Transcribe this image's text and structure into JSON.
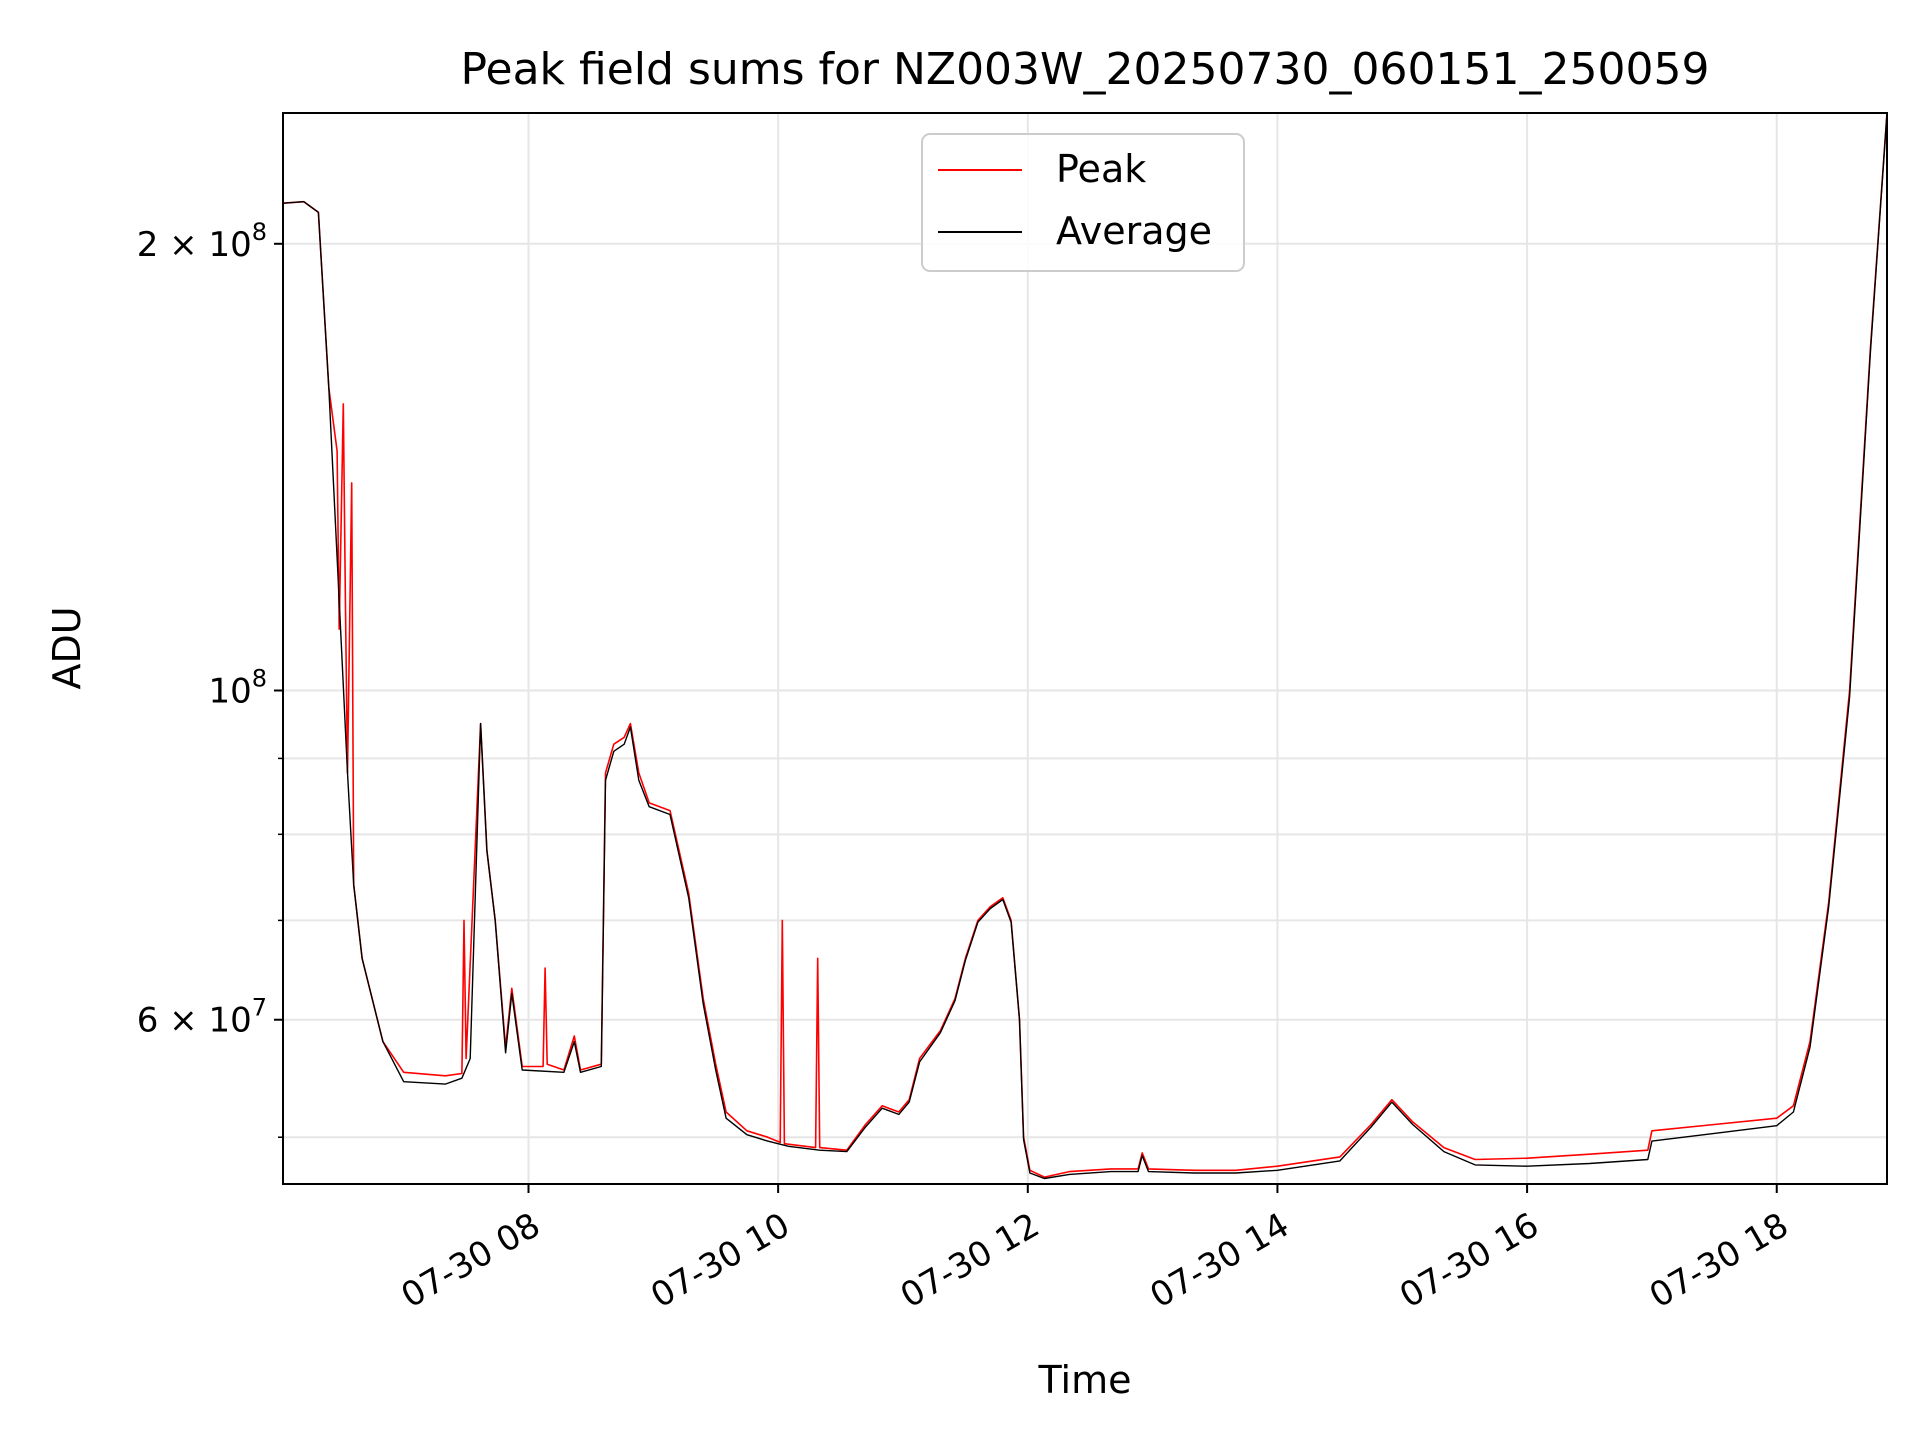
{
  "chart_data": {
    "type": "line",
    "title": "Peak field sums for NZ003W_20250730_060151_250059",
    "xlabel": "Time",
    "ylabel": "ADU",
    "yscale": "log",
    "xlim": [
      "07-30 06:02",
      "07-30 18:53"
    ],
    "ylim": [
      46500000,
      245000000
    ],
    "grid": true,
    "legend_position": "top-center",
    "x_ticks": [
      "07-30 08",
      "07-30 10",
      "07-30 12",
      "07-30 14",
      "07-30 16",
      "07-30 18"
    ],
    "y_ticks": [
      {
        "label_base": "2 × 10",
        "label_exp": "8",
        "value": 200000000
      },
      {
        "label_base": "10",
        "label_exp": "8",
        "value": 100000000
      },
      {
        "label_base": "6 × 10",
        "label_exp": "7",
        "value": 60000000
      }
    ],
    "series": [
      {
        "name": "Peak",
        "color": "#ff0000",
        "points": [
          [
            "07-30 06:02",
            213000000
          ],
          [
            "07-30 06:12",
            213500000
          ],
          [
            "07-30 06:19",
            210000000
          ],
          [
            "07-30 06:24",
            160000000
          ],
          [
            "07-30 06:28",
            145000000
          ],
          [
            "07-30 06:29",
            110000000
          ],
          [
            "07-30 06:31",
            156000000
          ],
          [
            "07-30 06:32",
            115000000
          ],
          [
            "07-30 06:33",
            88000000
          ],
          [
            "07-30 06:35",
            138000000
          ],
          [
            "07-30 06:36",
            74000000
          ],
          [
            "07-30 06:40",
            66000000
          ],
          [
            "07-30 06:50",
            58000000
          ],
          [
            "07-30 07:00",
            55300000
          ],
          [
            "07-30 07:20",
            55000000
          ],
          [
            "07-30 07:28",
            55200000
          ],
          [
            "07-30 07:29",
            70000000
          ],
          [
            "07-30 07:30",
            56500000
          ],
          [
            "07-30 07:37",
            95000000
          ],
          [
            "07-30 07:40",
            78000000
          ],
          [
            "07-30 07:44",
            70000000
          ],
          [
            "07-30 07:49",
            57500000
          ],
          [
            "07-30 07:52",
            63000000
          ],
          [
            "07-30 07:57",
            55800000
          ],
          [
            "07-30 08:07",
            55800000
          ],
          [
            "07-30 08:08",
            65000000
          ],
          [
            "07-30 08:09",
            56000000
          ],
          [
            "07-30 08:17",
            55500000
          ],
          [
            "07-30 08:22",
            58500000
          ],
          [
            "07-30 08:25",
            55500000
          ],
          [
            "07-30 08:35",
            56000000
          ],
          [
            "07-30 08:37",
            88000000
          ],
          [
            "07-30 08:41",
            92000000
          ],
          [
            "07-30 08:46",
            93000000
          ],
          [
            "07-30 08:49",
            95000000
          ],
          [
            "07-30 08:53",
            88000000
          ],
          [
            "07-30 08:58",
            84000000
          ],
          [
            "07-30 09:08",
            83000000
          ],
          [
            "07-30 09:17",
            73000000
          ],
          [
            "07-30 09:24",
            62000000
          ],
          [
            "07-30 09:30",
            56000000
          ],
          [
            "07-30 09:35",
            52000000
          ],
          [
            "07-30 09:45",
            50500000
          ],
          [
            "07-30 09:55",
            50000000
          ],
          [
            "07-30 10:01",
            49600000
          ],
          [
            "07-30 10:02",
            70000000
          ],
          [
            "07-30 10:03",
            49500000
          ],
          [
            "07-30 10:18",
            49200000
          ],
          [
            "07-30 10:19",
            66000000
          ],
          [
            "07-30 10:20",
            49200000
          ],
          [
            "07-30 10:33",
            49000000
          ],
          [
            "07-30 10:42",
            51000000
          ],
          [
            "07-30 10:50",
            52500000
          ],
          [
            "07-30 10:58",
            52000000
          ],
          [
            "07-30 11:03",
            53000000
          ],
          [
            "07-30 11:08",
            56500000
          ],
          [
            "07-30 11:18",
            59000000
          ],
          [
            "07-30 11:25",
            62000000
          ],
          [
            "07-30 11:30",
            66000000
          ],
          [
            "07-30 11:36",
            70000000
          ],
          [
            "07-30 11:42",
            71500000
          ],
          [
            "07-30 11:48",
            72500000
          ],
          [
            "07-30 11:52",
            70000000
          ],
          [
            "07-30 11:56",
            60000000
          ],
          [
            "07-30 11:58",
            50000000
          ],
          [
            "07-30 12:01",
            47500000
          ],
          [
            "07-30 12:08",
            47000000
          ],
          [
            "07-30 12:20",
            47400000
          ],
          [
            "07-30 12:40",
            47600000
          ],
          [
            "07-30 12:53",
            47600000
          ],
          [
            "07-30 12:55",
            48800000
          ],
          [
            "07-30 12:58",
            47600000
          ],
          [
            "07-30 13:20",
            47500000
          ],
          [
            "07-30 13:40",
            47500000
          ],
          [
            "07-30 14:00",
            47800000
          ],
          [
            "07-30 14:30",
            48500000
          ],
          [
            "07-30 14:45",
            51000000
          ],
          [
            "07-30 14:55",
            53000000
          ],
          [
            "07-30 15:05",
            51200000
          ],
          [
            "07-30 15:20",
            49200000
          ],
          [
            "07-30 15:35",
            48300000
          ],
          [
            "07-30 16:00",
            48400000
          ],
          [
            "07-30 16:30",
            48700000
          ],
          [
            "07-30 16:58",
            49000000
          ],
          [
            "07-30 17:00",
            50500000
          ],
          [
            "07-30 17:30",
            51000000
          ],
          [
            "07-30 18:00",
            51500000
          ],
          [
            "07-30 18:08",
            52500000
          ],
          [
            "07-30 18:16",
            58000000
          ],
          [
            "07-30 18:25",
            72000000
          ],
          [
            "07-30 18:35",
            100000000
          ],
          [
            "07-30 18:45",
            170000000
          ],
          [
            "07-30 18:53",
            245000000
          ]
        ]
      },
      {
        "name": "Average",
        "color": "#000000",
        "points": [
          [
            "07-30 06:02",
            213000000
          ],
          [
            "07-30 06:12",
            213500000
          ],
          [
            "07-30 06:19",
            210000000
          ],
          [
            "07-30 06:24",
            160000000
          ],
          [
            "07-30 06:29",
            115000000
          ],
          [
            "07-30 06:33",
            88000000
          ],
          [
            "07-30 06:36",
            74000000
          ],
          [
            "07-30 06:40",
            66000000
          ],
          [
            "07-30 06:50",
            58000000
          ],
          [
            "07-30 07:00",
            54500000
          ],
          [
            "07-30 07:20",
            54300000
          ],
          [
            "07-30 07:28",
            54800000
          ],
          [
            "07-30 07:32",
            56500000
          ],
          [
            "07-30 07:37",
            95000000
          ],
          [
            "07-30 07:40",
            78000000
          ],
          [
            "07-30 07:44",
            70000000
          ],
          [
            "07-30 07:49",
            57000000
          ],
          [
            "07-30 07:52",
            62500000
          ],
          [
            "07-30 07:57",
            55500000
          ],
          [
            "07-30 08:17",
            55300000
          ],
          [
            "07-30 08:22",
            58000000
          ],
          [
            "07-30 08:25",
            55300000
          ],
          [
            "07-30 08:35",
            55800000
          ],
          [
            "07-30 08:37",
            87000000
          ],
          [
            "07-30 08:41",
            91000000
          ],
          [
            "07-30 08:46",
            92000000
          ],
          [
            "07-30 08:49",
            94500000
          ],
          [
            "07-30 08:53",
            87000000
          ],
          [
            "07-30 08:58",
            83500000
          ],
          [
            "07-30 09:08",
            82500000
          ],
          [
            "07-30 09:17",
            72500000
          ],
          [
            "07-30 09:24",
            61500000
          ],
          [
            "07-30 09:30",
            55500000
          ],
          [
            "07-30 09:35",
            51500000
          ],
          [
            "07-30 09:45",
            50200000
          ],
          [
            "07-30 09:55",
            49700000
          ],
          [
            "07-30 10:05",
            49300000
          ],
          [
            "07-30 10:20",
            49000000
          ],
          [
            "07-30 10:33",
            48900000
          ],
          [
            "07-30 10:42",
            50800000
          ],
          [
            "07-30 10:50",
            52300000
          ],
          [
            "07-30 10:58",
            51800000
          ],
          [
            "07-30 11:03",
            52800000
          ],
          [
            "07-30 11:08",
            56200000
          ],
          [
            "07-30 11:18",
            58800000
          ],
          [
            "07-30 11:25",
            61800000
          ],
          [
            "07-30 11:30",
            65800000
          ],
          [
            "07-30 11:36",
            69800000
          ],
          [
            "07-30 11:42",
            71300000
          ],
          [
            "07-30 11:48",
            72300000
          ],
          [
            "07-30 11:52",
            69800000
          ],
          [
            "07-30 11:56",
            60000000
          ],
          [
            "07-30 11:58",
            49800000
          ],
          [
            "07-30 12:01",
            47300000
          ],
          [
            "07-30 12:08",
            46900000
          ],
          [
            "07-30 12:20",
            47200000
          ],
          [
            "07-30 12:40",
            47400000
          ],
          [
            "07-30 12:53",
            47400000
          ],
          [
            "07-30 12:55",
            48600000
          ],
          [
            "07-30 12:58",
            47400000
          ],
          [
            "07-30 13:20",
            47300000
          ],
          [
            "07-30 13:40",
            47300000
          ],
          [
            "07-30 14:00",
            47500000
          ],
          [
            "07-30 14:30",
            48200000
          ],
          [
            "07-30 14:45",
            50800000
          ],
          [
            "07-30 14:55",
            52800000
          ],
          [
            "07-30 15:05",
            51000000
          ],
          [
            "07-30 15:20",
            48900000
          ],
          [
            "07-30 15:35",
            47900000
          ],
          [
            "07-30 16:00",
            47800000
          ],
          [
            "07-30 16:30",
            48000000
          ],
          [
            "07-30 16:58",
            48300000
          ],
          [
            "07-30 17:00",
            49700000
          ],
          [
            "07-30 17:30",
            50300000
          ],
          [
            "07-30 18:00",
            50900000
          ],
          [
            "07-30 18:08",
            52000000
          ],
          [
            "07-30 18:16",
            57500000
          ],
          [
            "07-30 18:25",
            71500000
          ],
          [
            "07-30 18:35",
            99000000
          ],
          [
            "07-30 18:45",
            169000000
          ],
          [
            "07-30 18:53",
            245000000
          ]
        ]
      }
    ]
  }
}
